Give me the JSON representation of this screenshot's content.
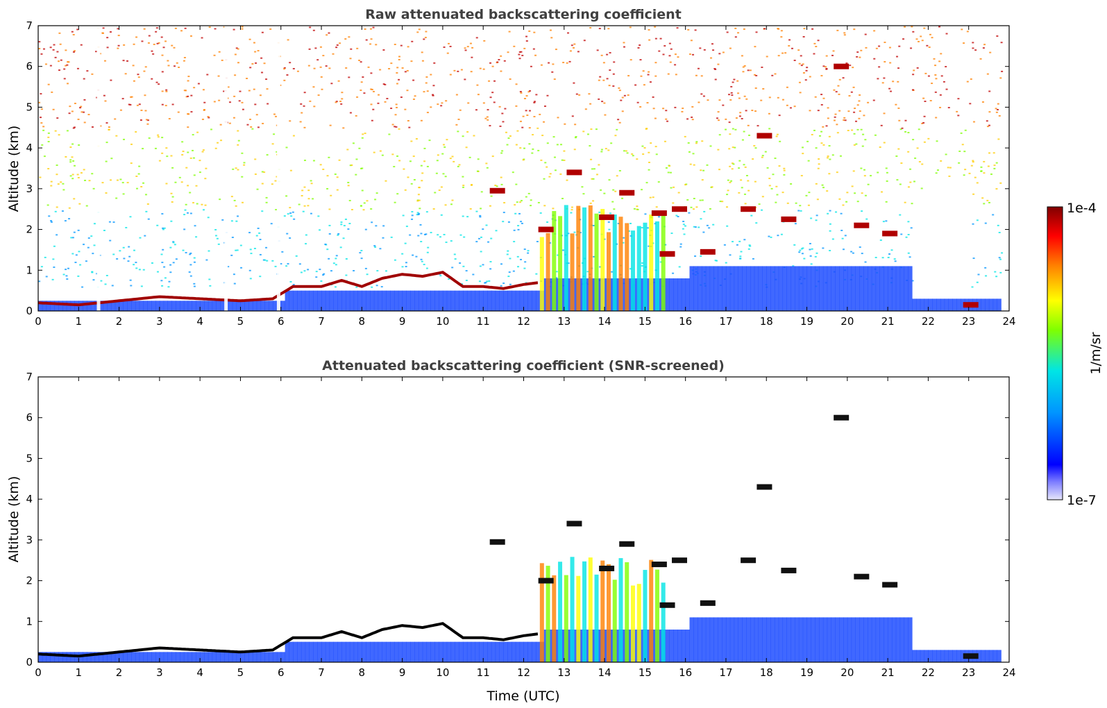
{
  "chart_data": [
    {
      "type": "heatmap",
      "title": "Raw attenuated backscattering coefficient",
      "xlabel": "",
      "ylabel": "Altitude (km)",
      "xlim": [
        0,
        24
      ],
      "ylim": [
        0,
        7
      ],
      "x_ticks": [
        "0",
        "1",
        "2",
        "3",
        "4",
        "5",
        "6",
        "7",
        "8",
        "9",
        "10",
        "11",
        "12",
        "13",
        "14",
        "15",
        "16",
        "17",
        "18",
        "19",
        "20",
        "21",
        "22",
        "23",
        "24"
      ],
      "y_ticks": [
        "0",
        "1",
        "2",
        "3",
        "4",
        "5",
        "6",
        "7"
      ],
      "features": [
        {
          "name": "boundary-layer-top",
          "points": [
            [
              0,
              0.2
            ],
            [
              1,
              0.15
            ],
            [
              2,
              0.25
            ],
            [
              3,
              0.35
            ],
            [
              4,
              0.3
            ],
            [
              5,
              0.25
            ],
            [
              5.8,
              0.3
            ],
            [
              6.3,
              0.6
            ],
            [
              7,
              0.6
            ],
            [
              7.5,
              0.75
            ],
            [
              8,
              0.6
            ],
            [
              8.5,
              0.8
            ],
            [
              9,
              0.9
            ],
            [
              9.5,
              0.85
            ],
            [
              10,
              0.95
            ],
            [
              10.5,
              0.6
            ],
            [
              11,
              0.6
            ],
            [
              11.5,
              0.55
            ],
            [
              12,
              0.65
            ],
            [
              12.4,
              0.7
            ]
          ]
        },
        {
          "name": "elevated-clouds",
          "points": [
            [
              11.3,
              2.95
            ],
            [
              12.5,
              2.0
            ],
            [
              13.2,
              3.4
            ],
            [
              14.0,
              2.3
            ],
            [
              14.5,
              2.9
            ],
            [
              15.3,
              2.4
            ],
            [
              15.8,
              2.5
            ],
            [
              15.5,
              1.4
            ],
            [
              16.5,
              1.45
            ],
            [
              17.5,
              2.5
            ],
            [
              17.9,
              4.3
            ],
            [
              18.5,
              2.25
            ],
            [
              19.8,
              6.0
            ],
            [
              20.3,
              2.1
            ],
            [
              21.0,
              1.9
            ],
            [
              23,
              0.15
            ]
          ]
        }
      ]
    },
    {
      "type": "heatmap",
      "title": "Attenuated backscattering coefficient (SNR-screened)",
      "xlabel": "Time (UTC)",
      "ylabel": "Altitude (km)",
      "xlim": [
        0,
        24
      ],
      "ylim": [
        0,
        7
      ],
      "x_ticks": [
        "0",
        "1",
        "2",
        "3",
        "4",
        "5",
        "6",
        "7",
        "8",
        "9",
        "10",
        "11",
        "12",
        "13",
        "14",
        "15",
        "16",
        "17",
        "18",
        "19",
        "20",
        "21",
        "22",
        "23",
        "24"
      ],
      "y_ticks": [
        "0",
        "1",
        "2",
        "3",
        "4",
        "5",
        "6",
        "7"
      ]
    }
  ],
  "colorbar": {
    "label": "1/m/sr",
    "max_label": "1e-4",
    "min_label": "1e-7",
    "colors": [
      "#e6e6fa",
      "#0000ff",
      "#0096ff",
      "#00e5e5",
      "#7fff00",
      "#ffff00",
      "#ff8000",
      "#ff0000",
      "#800000"
    ]
  }
}
